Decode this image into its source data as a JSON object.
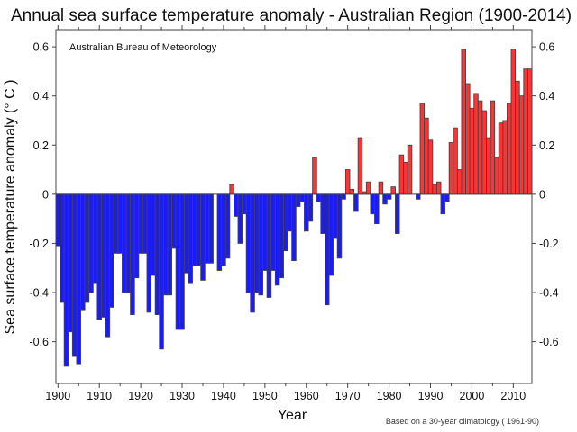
{
  "chart_data": {
    "type": "bar",
    "title": "Annual sea surface temperature anomaly - Australian Region (1900-2014)",
    "xlabel": "Year",
    "ylabel": "Sea surface temperature anomaly (° C )",
    "annotation": "Australian Bureau of Meteorology",
    "footnote": "Based on a 30-year climatology ( 1961-90)",
    "xlim": [
      1899.5,
      2014.5
    ],
    "ylim": [
      -0.77,
      0.67
    ],
    "grid": false,
    "legend": "none",
    "x_ticks": [
      1900,
      1910,
      1920,
      1930,
      1940,
      1950,
      1960,
      1970,
      1980,
      1990,
      2000,
      2010
    ],
    "x_tick_labels": [
      "1900",
      "1910",
      "1920",
      "1930",
      "1940",
      "1950",
      "1960",
      "1970",
      "1980",
      "1990",
      "2000",
      "2010"
    ],
    "y_ticks": [
      -0.6,
      -0.4,
      -0.2,
      0,
      0.2,
      0.4,
      0.6
    ],
    "y_tick_labels": [
      "-0.6",
      "-0.4",
      "-0.2",
      "0",
      "0.2",
      "0.4",
      "0.6"
    ],
    "colors": {
      "positive": "#ff3333",
      "negative": "#1a1aff",
      "edge": "#444444"
    },
    "x": [
      1900,
      1901,
      1902,
      1903,
      1904,
      1905,
      1906,
      1907,
      1908,
      1909,
      1910,
      1911,
      1912,
      1913,
      1914,
      1915,
      1916,
      1917,
      1918,
      1919,
      1920,
      1921,
      1922,
      1923,
      1924,
      1925,
      1926,
      1927,
      1928,
      1929,
      1930,
      1931,
      1932,
      1933,
      1934,
      1935,
      1936,
      1937,
      1938,
      1939,
      1940,
      1941,
      1942,
      1943,
      1944,
      1945,
      1946,
      1947,
      1948,
      1949,
      1950,
      1951,
      1952,
      1953,
      1954,
      1955,
      1956,
      1957,
      1958,
      1959,
      1960,
      1961,
      1962,
      1963,
      1964,
      1965,
      1966,
      1967,
      1968,
      1969,
      1970,
      1971,
      1972,
      1973,
      1974,
      1975,
      1976,
      1977,
      1978,
      1979,
      1980,
      1981,
      1982,
      1983,
      1984,
      1985,
      1986,
      1987,
      1988,
      1989,
      1990,
      1991,
      1992,
      1993,
      1994,
      1995,
      1996,
      1997,
      1998,
      1999,
      2000,
      2001,
      2002,
      2003,
      2004,
      2005,
      2006,
      2007,
      2008,
      2009,
      2010,
      2011,
      2012,
      2013,
      2014
    ],
    "values": [
      -0.21,
      -0.44,
      -0.7,
      -0.56,
      -0.66,
      -0.69,
      -0.47,
      -0.44,
      -0.4,
      -0.36,
      -0.51,
      -0.5,
      -0.58,
      -0.46,
      -0.24,
      -0.24,
      -0.4,
      -0.4,
      -0.49,
      -0.34,
      -0.24,
      -0.24,
      -0.48,
      -0.33,
      -0.49,
      -0.63,
      -0.41,
      -0.41,
      -0.22,
      -0.55,
      -0.55,
      -0.32,
      -0.36,
      -0.29,
      -0.29,
      -0.35,
      -0.28,
      -0.28,
      0.0,
      -0.31,
      -0.29,
      -0.26,
      0.04,
      -0.09,
      -0.2,
      -0.08,
      -0.4,
      -0.48,
      -0.4,
      -0.41,
      -0.31,
      -0.42,
      -0.31,
      -0.37,
      -0.34,
      -0.23,
      -0.15,
      -0.27,
      -0.05,
      -0.03,
      -0.15,
      -0.11,
      0.15,
      -0.03,
      -0.16,
      -0.45,
      -0.33,
      -0.18,
      -0.26,
      -0.02,
      0.1,
      0.02,
      -0.07,
      0.23,
      0.01,
      0.05,
      -0.08,
      -0.12,
      0.05,
      -0.04,
      -0.02,
      0.03,
      -0.16,
      0.16,
      0.13,
      0.2,
      0.0,
      -0.02,
      0.37,
      0.31,
      0.22,
      0.04,
      0.05,
      -0.08,
      -0.03,
      0.21,
      0.27,
      0.1,
      0.59,
      0.45,
      0.35,
      0.41,
      0.38,
      0.34,
      0.23,
      0.38,
      0.15,
      0.29,
      0.3,
      0.37,
      0.59,
      0.46,
      0.4,
      0.51,
      0.51
    ]
  }
}
